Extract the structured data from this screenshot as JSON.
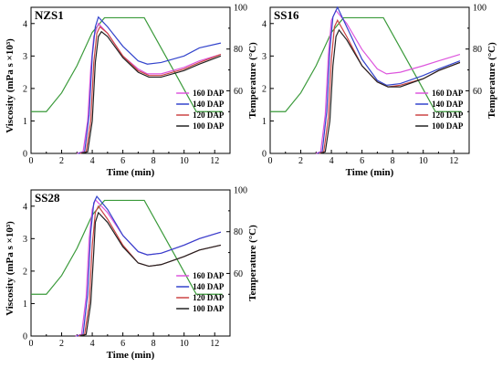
{
  "chart_data": [
    {
      "type": "line",
      "panel_label": "NZS1",
      "xlabel": "Time (min)",
      "ylabel": "Viscosity (mPa s ×10³)",
      "y2label": "Temperature (°C)",
      "xlim": [
        0,
        13
      ],
      "ylim": [
        0,
        4.5
      ],
      "y2lim": [
        30,
        100
      ],
      "xticks": [
        0,
        2,
        4,
        6,
        8,
        10,
        12
      ],
      "yticks": [
        0,
        1,
        2,
        3,
        4
      ],
      "y2ticks": [
        60,
        80,
        100
      ],
      "legend_position": "bottom-right",
      "colors": {
        "temperature": "#3a9a3a"
      },
      "temperature": {
        "x": [
          0,
          1,
          2,
          3,
          4,
          4.8,
          7.4,
          9.6,
          10.8,
          12.5
        ],
        "y": [
          50,
          50,
          59,
          72,
          88,
          95,
          95,
          66,
          50,
          50
        ]
      },
      "series": [
        {
          "name": "160 DAP",
          "color": "#dd55dd",
          "x": [
            3.0,
            3.4,
            3.7,
            3.9,
            4.1,
            4.4,
            5.0,
            6.0,
            7.0,
            7.6,
            8.5,
            10.0,
            11.0,
            12.4
          ],
          "y": [
            0,
            0.05,
            1.0,
            2.6,
            3.6,
            4.0,
            3.7,
            3.0,
            2.6,
            2.45,
            2.45,
            2.65,
            2.85,
            3.05
          ]
        },
        {
          "name": "140 DAP",
          "color": "#3344cc",
          "x": [
            3.1,
            3.5,
            3.8,
            4.0,
            4.2,
            4.4,
            5.0,
            6.0,
            7.0,
            7.6,
            8.5,
            10.0,
            11.0,
            12.4
          ],
          "y": [
            0,
            0.05,
            1.2,
            3.0,
            3.9,
            4.2,
            3.9,
            3.3,
            2.85,
            2.75,
            2.8,
            3.0,
            3.25,
            3.4
          ]
        },
        {
          "name": "120 DAP",
          "color": "#cc4444",
          "x": [
            3.2,
            3.6,
            3.9,
            4.1,
            4.3,
            4.5,
            5.0,
            6.0,
            7.0,
            7.7,
            8.5,
            10.0,
            11.0,
            12.4
          ],
          "y": [
            0,
            0.05,
            1.0,
            2.8,
            3.7,
            3.9,
            3.7,
            3.0,
            2.55,
            2.4,
            2.4,
            2.6,
            2.8,
            3.05
          ]
        },
        {
          "name": "100 DAP",
          "color": "#222222",
          "x": [
            3.3,
            3.7,
            4.0,
            4.2,
            4.4,
            4.6,
            5.0,
            6.0,
            7.0,
            7.7,
            8.5,
            10.0,
            11.0,
            12.4
          ],
          "y": [
            0,
            0.05,
            1.0,
            2.8,
            3.6,
            3.75,
            3.6,
            2.95,
            2.5,
            2.35,
            2.35,
            2.55,
            2.75,
            3.0
          ]
        }
      ]
    },
    {
      "type": "line",
      "panel_label": "SS16",
      "xlabel": "Time (min)",
      "ylabel": "",
      "y2label": "Temperature (°C)",
      "xlim": [
        0,
        13
      ],
      "ylim": [
        0,
        4.5
      ],
      "y2lim": [
        30,
        100
      ],
      "xticks": [
        0,
        2,
        4,
        6,
        8,
        10,
        12
      ],
      "yticks": [
        0,
        1,
        2,
        3,
        4
      ],
      "y2ticks": [
        60,
        80,
        100
      ],
      "legend_position": "bottom-right",
      "colors": {
        "temperature": "#3a9a3a"
      },
      "temperature": {
        "x": [
          0,
          1,
          2,
          3,
          4,
          4.8,
          7.4,
          9.6,
          10.8,
          12.5
        ],
        "y": [
          50,
          50,
          59,
          72,
          88,
          95,
          95,
          66,
          50,
          50
        ]
      },
      "series": [
        {
          "name": "160 DAP",
          "color": "#dd55dd",
          "x": [
            3.0,
            3.3,
            3.6,
            3.8,
            4.0,
            4.3,
            5.0,
            6.0,
            7.0,
            7.6,
            8.5,
            10.0,
            11.0,
            12.4
          ],
          "y": [
            0,
            0.05,
            1.2,
            3.0,
            4.1,
            4.4,
            4.0,
            3.2,
            2.6,
            2.45,
            2.5,
            2.7,
            2.85,
            3.05
          ]
        },
        {
          "name": "140 DAP",
          "color": "#3344cc",
          "x": [
            3.1,
            3.4,
            3.7,
            3.9,
            4.1,
            4.4,
            5.0,
            6.0,
            7.0,
            7.6,
            8.5,
            10.0,
            11.0,
            12.4
          ],
          "y": [
            0,
            0.05,
            1.3,
            3.2,
            4.2,
            4.5,
            3.9,
            2.9,
            2.25,
            2.1,
            2.15,
            2.4,
            2.6,
            2.85
          ]
        },
        {
          "name": "120 DAP",
          "color": "#cc4444",
          "x": [
            3.2,
            3.5,
            3.8,
            4.0,
            4.2,
            4.4,
            5.0,
            6.0,
            7.0,
            7.7,
            8.5,
            10.0,
            11.0,
            12.4
          ],
          "y": [
            0,
            0.05,
            1.1,
            2.9,
            3.9,
            4.1,
            3.6,
            2.7,
            2.2,
            2.05,
            2.1,
            2.3,
            2.55,
            2.8
          ]
        },
        {
          "name": "100 DAP",
          "color": "#222222",
          "x": [
            3.3,
            3.6,
            3.9,
            4.1,
            4.3,
            4.5,
            5.0,
            6.0,
            7.0,
            7.7,
            8.5,
            10.0,
            11.0,
            12.4
          ],
          "y": [
            0,
            0.05,
            1.0,
            2.7,
            3.6,
            3.8,
            3.5,
            2.7,
            2.2,
            2.05,
            2.05,
            2.3,
            2.55,
            2.8
          ]
        }
      ]
    },
    {
      "type": "line",
      "panel_label": "SS28",
      "xlabel": "Time (min)",
      "ylabel": "Viscosity (mPa s ×10³)",
      "y2label": "Temperature (°C)",
      "xlim": [
        0,
        13
      ],
      "ylim": [
        0,
        4.5
      ],
      "y2lim": [
        30,
        100
      ],
      "xticks": [
        0,
        2,
        4,
        6,
        8,
        10,
        12
      ],
      "yticks": [
        0,
        1,
        2,
        3,
        4
      ],
      "y2ticks": [
        60,
        80,
        100
      ],
      "legend_position": "bottom-right",
      "colors": {
        "temperature": "#3a9a3a"
      },
      "temperature": {
        "x": [
          0,
          1,
          2,
          3,
          4,
          4.8,
          7.4,
          9.6,
          10.8,
          12.5
        ],
        "y": [
          50,
          50,
          59,
          72,
          88,
          95,
          95,
          66,
          50,
          50
        ]
      },
      "series": [
        {
          "name": "160 DAP",
          "color": "#dd55dd",
          "x": [
            2.9,
            3.3,
            3.6,
            3.8,
            4.0,
            4.2,
            5.0,
            6.0,
            7.0,
            7.6,
            8.5,
            10.0,
            11.0,
            12.4
          ],
          "y": [
            0,
            0.05,
            1.2,
            3.0,
            3.9,
            4.2,
            3.8,
            3.1,
            2.6,
            2.5,
            2.55,
            2.8,
            3.0,
            3.2
          ]
        },
        {
          "name": "140 DAP",
          "color": "#3344cc",
          "x": [
            3.0,
            3.4,
            3.7,
            3.9,
            4.1,
            4.3,
            5.0,
            6.0,
            7.0,
            7.6,
            8.5,
            10.0,
            11.0,
            12.4
          ],
          "y": [
            0,
            0.05,
            1.3,
            3.2,
            4.1,
            4.3,
            3.9,
            3.1,
            2.6,
            2.5,
            2.55,
            2.8,
            3.0,
            3.2
          ]
        },
        {
          "name": "120 DAP",
          "color": "#cc4444",
          "x": [
            3.1,
            3.5,
            3.8,
            4.0,
            4.2,
            4.4,
            5.0,
            6.0,
            7.0,
            7.7,
            8.5,
            10.0,
            11.0,
            12.4
          ],
          "y": [
            0,
            0.05,
            1.0,
            2.8,
            3.8,
            4.0,
            3.6,
            2.8,
            2.25,
            2.15,
            2.2,
            2.45,
            2.65,
            2.8
          ]
        },
        {
          "name": "100 DAP",
          "color": "#222222",
          "x": [
            3.2,
            3.6,
            3.9,
            4.1,
            4.2,
            4.4,
            5.0,
            6.0,
            7.0,
            7.7,
            8.5,
            10.0,
            11.0,
            12.4
          ],
          "y": [
            0,
            0.05,
            1.0,
            2.6,
            3.5,
            3.8,
            3.5,
            2.75,
            2.25,
            2.15,
            2.2,
            2.45,
            2.65,
            2.8
          ]
        }
      ]
    }
  ]
}
